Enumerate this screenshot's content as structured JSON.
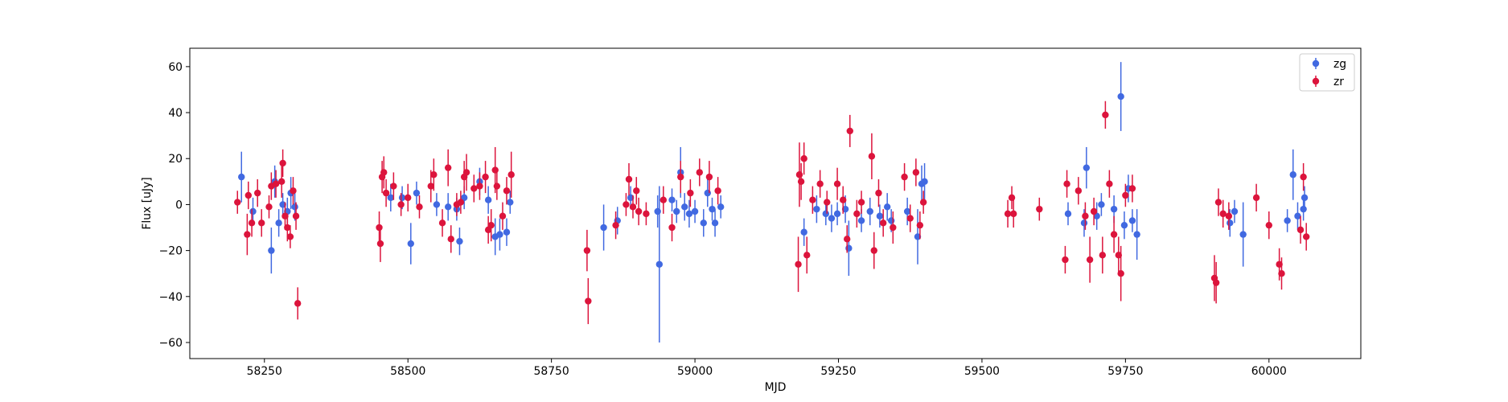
{
  "chart_data": {
    "type": "scatter",
    "title": "",
    "xlabel": "MJD",
    "ylabel": "Flux [uJy]",
    "xlim": [
      58120,
      60160
    ],
    "ylim": [
      -67,
      68
    ],
    "xticks": [
      58250,
      58500,
      58750,
      59000,
      59250,
      59500,
      59750,
      60000
    ],
    "xtick_labels": [
      "58250",
      "58500",
      "58750",
      "59000",
      "59250",
      "59500",
      "59750",
      "60000"
    ],
    "yticks": [
      -60,
      -40,
      -20,
      0,
      20,
      40,
      60
    ],
    "ytick_labels": [
      "−60",
      "−40",
      "−20",
      "0",
      "20",
      "40",
      "60"
    ],
    "grid": false,
    "legend_position": "top-right",
    "series": [
      {
        "name": "zg",
        "color": "#4169e1",
        "error_bars": true,
        "points": [
          [
            58210,
            12,
            11
          ],
          [
            58230,
            -3,
            6
          ],
          [
            58262,
            -20,
            10
          ],
          [
            58268,
            10,
            7
          ],
          [
            58275,
            -8,
            6
          ],
          [
            58282,
            0,
            5
          ],
          [
            58290,
            -3,
            6
          ],
          [
            58296,
            5,
            7
          ],
          [
            58303,
            -1,
            6
          ],
          [
            58470,
            3,
            6
          ],
          [
            58490,
            3,
            5
          ],
          [
            58505,
            -17,
            9
          ],
          [
            58515,
            5,
            5
          ],
          [
            58550,
            0,
            5
          ],
          [
            58570,
            -1,
            6
          ],
          [
            58585,
            -2,
            5
          ],
          [
            58590,
            -16,
            6
          ],
          [
            58598,
            3,
            5
          ],
          [
            58625,
            10,
            6
          ],
          [
            58640,
            2,
            6
          ],
          [
            58652,
            -14,
            8
          ],
          [
            58660,
            -13,
            7
          ],
          [
            58672,
            -12,
            6
          ],
          [
            58678,
            1,
            5
          ],
          [
            58841,
            -10,
            10
          ],
          [
            58865,
            -7,
            6
          ],
          [
            58888,
            3,
            5
          ],
          [
            58935,
            -3,
            7
          ],
          [
            58938,
            -26,
            34
          ],
          [
            58960,
            2,
            5
          ],
          [
            58968,
            -3,
            5
          ],
          [
            58975,
            14,
            11
          ],
          [
            58982,
            -1,
            6
          ],
          [
            58990,
            -4,
            6
          ],
          [
            59000,
            -3,
            5
          ],
          [
            59015,
            -8,
            6
          ],
          [
            59022,
            5,
            6
          ],
          [
            59030,
            -2,
            5
          ],
          [
            59035,
            -8,
            6
          ],
          [
            59045,
            -1,
            5
          ],
          [
            59190,
            -12,
            6
          ],
          [
            59212,
            -2,
            6
          ],
          [
            59228,
            -4,
            5
          ],
          [
            59238,
            -6,
            6
          ],
          [
            59248,
            -4,
            5
          ],
          [
            59262,
            -2,
            6
          ],
          [
            59268,
            -19,
            12
          ],
          [
            59290,
            -7,
            5
          ],
          [
            59305,
            -3,
            6
          ],
          [
            59322,
            -5,
            5
          ],
          [
            59335,
            -1,
            6
          ],
          [
            59342,
            -7,
            5
          ],
          [
            59370,
            -3,
            6
          ],
          [
            59388,
            -14,
            12
          ],
          [
            59395,
            9,
            8
          ],
          [
            59400,
            10,
            8
          ],
          [
            59650,
            -4,
            5
          ],
          [
            59678,
            -8,
            6
          ],
          [
            59682,
            16,
            9
          ],
          [
            59700,
            -5,
            6
          ],
          [
            59708,
            0,
            5
          ],
          [
            59730,
            -2,
            6
          ],
          [
            59742,
            47,
            15
          ],
          [
            59748,
            -9,
            6
          ],
          [
            59755,
            7,
            6
          ],
          [
            59762,
            -7,
            5
          ],
          [
            59770,
            -13,
            11
          ],
          [
            59932,
            -8,
            6
          ],
          [
            59940,
            -3,
            5
          ],
          [
            59955,
            -13,
            14
          ],
          [
            60032,
            -7,
            5
          ],
          [
            60042,
            13,
            11
          ],
          [
            60050,
            -5,
            6
          ],
          [
            60060,
            -2,
            5
          ],
          [
            60062,
            3,
            5
          ]
        ]
      },
      {
        "name": "zr",
        "color": "#dc143c",
        "error_bars": true,
        "points": [
          [
            58203,
            1,
            5
          ],
          [
            58220,
            -13,
            9
          ],
          [
            58222,
            4,
            6
          ],
          [
            58228,
            -8,
            6
          ],
          [
            58238,
            5,
            6
          ],
          [
            58245,
            -8,
            6
          ],
          [
            58258,
            -1,
            5
          ],
          [
            58262,
            8,
            6
          ],
          [
            58270,
            9,
            6
          ],
          [
            58280,
            10,
            7
          ],
          [
            58282,
            18,
            6
          ],
          [
            58286,
            -5,
            6
          ],
          [
            58290,
            -10,
            6
          ],
          [
            58295,
            -14,
            5
          ],
          [
            58300,
            6,
            6
          ],
          [
            58305,
            -5,
            6
          ],
          [
            58308,
            -43,
            7
          ],
          [
            58450,
            -10,
            7
          ],
          [
            58452,
            -17,
            8
          ],
          [
            58455,
            12,
            7
          ],
          [
            58458,
            14,
            7
          ],
          [
            58462,
            5,
            6
          ],
          [
            58475,
            8,
            6
          ],
          [
            58488,
            0,
            5
          ],
          [
            58500,
            3,
            6
          ],
          [
            58520,
            -1,
            5
          ],
          [
            58540,
            8,
            7
          ],
          [
            58545,
            13,
            7
          ],
          [
            58560,
            -8,
            6
          ],
          [
            58570,
            16,
            8
          ],
          [
            58575,
            -15,
            6
          ],
          [
            58585,
            0,
            5
          ],
          [
            58592,
            1,
            5
          ],
          [
            58598,
            12,
            7
          ],
          [
            58602,
            14,
            8
          ],
          [
            58615,
            7,
            6
          ],
          [
            58625,
            8,
            6
          ],
          [
            58635,
            12,
            7
          ],
          [
            58640,
            -11,
            6
          ],
          [
            58645,
            -9,
            7
          ],
          [
            58652,
            15,
            10
          ],
          [
            58655,
            8,
            6
          ],
          [
            58665,
            -5,
            6
          ],
          [
            58672,
            6,
            6
          ],
          [
            58680,
            13,
            10
          ],
          [
            58812,
            -20,
            9
          ],
          [
            58814,
            -42,
            10
          ],
          [
            58862,
            -9,
            6
          ],
          [
            58880,
            0,
            5
          ],
          [
            58885,
            11,
            7
          ],
          [
            58892,
            -1,
            5
          ],
          [
            58898,
            6,
            6
          ],
          [
            58902,
            -3,
            6
          ],
          [
            58915,
            -4,
            5
          ],
          [
            58945,
            2,
            6
          ],
          [
            58960,
            -10,
            6
          ],
          [
            58975,
            12,
            7
          ],
          [
            58992,
            5,
            6
          ],
          [
            59008,
            14,
            6
          ],
          [
            59025,
            12,
            7
          ],
          [
            59040,
            6,
            6
          ],
          [
            59180,
            -26,
            12
          ],
          [
            59182,
            13,
            14
          ],
          [
            59185,
            10,
            8
          ],
          [
            59190,
            20,
            7
          ],
          [
            59195,
            -22,
            8
          ],
          [
            59205,
            2,
            6
          ],
          [
            59218,
            9,
            6
          ],
          [
            59230,
            1,
            5
          ],
          [
            59248,
            9,
            7
          ],
          [
            59258,
            2,
            6
          ],
          [
            59265,
            -15,
            6
          ],
          [
            59270,
            32,
            7
          ],
          [
            59282,
            -4,
            6
          ],
          [
            59290,
            1,
            5
          ],
          [
            59308,
            21,
            10
          ],
          [
            59312,
            -20,
            8
          ],
          [
            59320,
            5,
            6
          ],
          [
            59328,
            -8,
            6
          ],
          [
            59345,
            -10,
            7
          ],
          [
            59365,
            12,
            6
          ],
          [
            59375,
            -6,
            6
          ],
          [
            59385,
            14,
            6
          ],
          [
            59392,
            -9,
            6
          ],
          [
            59398,
            1,
            5
          ],
          [
            59545,
            -4,
            6
          ],
          [
            59552,
            3,
            5
          ],
          [
            59555,
            -4,
            6
          ],
          [
            59600,
            -2,
            5
          ],
          [
            59645,
            -24,
            6
          ],
          [
            59648,
            9,
            6
          ],
          [
            59668,
            6,
            6
          ],
          [
            59680,
            -5,
            6
          ],
          [
            59688,
            -24,
            10
          ],
          [
            59695,
            -3,
            6
          ],
          [
            59710,
            -22,
            8
          ],
          [
            59715,
            39,
            6
          ],
          [
            59722,
            9,
            6
          ],
          [
            59730,
            -13,
            8
          ],
          [
            59738,
            -22,
            8
          ],
          [
            59742,
            -30,
            12
          ],
          [
            59750,
            4,
            5
          ],
          [
            59762,
            7,
            6
          ],
          [
            59905,
            -32,
            10
          ],
          [
            59908,
            -34,
            9
          ],
          [
            59912,
            1,
            6
          ],
          [
            59920,
            -4,
            6
          ],
          [
            59930,
            -5,
            6
          ],
          [
            59978,
            3,
            6
          ],
          [
            60000,
            -9,
            6
          ],
          [
            60018,
            -26,
            7
          ],
          [
            60022,
            -30,
            7
          ],
          [
            60055,
            -11,
            6
          ],
          [
            60060,
            12,
            6
          ],
          [
            60065,
            -14,
            6
          ]
        ]
      }
    ]
  }
}
